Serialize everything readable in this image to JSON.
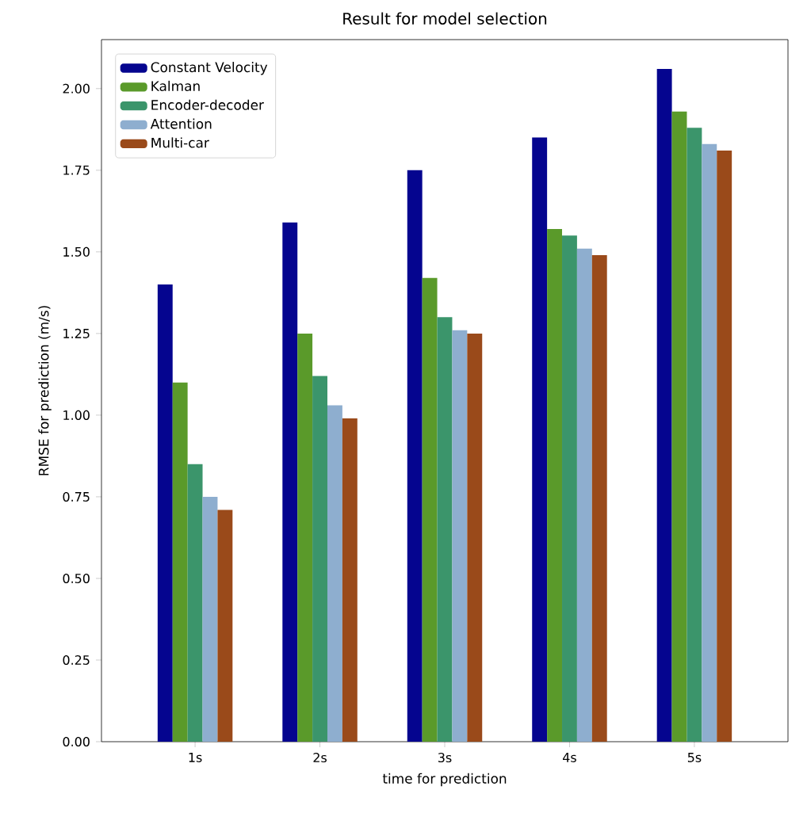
{
  "chart_data": {
    "type": "bar",
    "title": "Result for model selection",
    "xlabel": "time for prediction",
    "ylabel": "RMSE for prediction (m/s)",
    "categories": [
      "1s",
      "2s",
      "3s",
      "4s",
      "5s"
    ],
    "series": [
      {
        "name": "Constant Velocity",
        "color": "#05058f",
        "values": [
          1.4,
          1.59,
          1.75,
          1.85,
          2.06
        ]
      },
      {
        "name": "Kalman",
        "color": "#5a9a2a",
        "values": [
          1.1,
          1.25,
          1.42,
          1.57,
          1.93
        ]
      },
      {
        "name": "Encoder-decoder",
        "color": "#3b956b",
        "values": [
          0.85,
          1.12,
          1.3,
          1.55,
          1.88
        ]
      },
      {
        "name": "Attention",
        "color": "#8eaecf",
        "values": [
          0.75,
          1.03,
          1.26,
          1.51,
          1.83
        ]
      },
      {
        "name": "Multi-car",
        "color": "#9a4a1a",
        "values": [
          0.71,
          0.99,
          1.25,
          1.49,
          1.81
        ]
      }
    ],
    "ylim": [
      0,
      2.15
    ],
    "yticks": [
      {
        "value": 0,
        "label": "0.00"
      },
      {
        "value": 0.25,
        "label": "0.25"
      },
      {
        "value": 0.5,
        "label": "0.50"
      },
      {
        "value": 0.75,
        "label": "0.75"
      },
      {
        "value": 1.0,
        "label": "1.00"
      },
      {
        "value": 1.25,
        "label": "1.25"
      },
      {
        "value": 1.5,
        "label": "1.50"
      },
      {
        "value": 1.75,
        "label": "1.75"
      },
      {
        "value": 2.0,
        "label": "2.00"
      }
    ],
    "legend": "top left",
    "grid": false
  }
}
